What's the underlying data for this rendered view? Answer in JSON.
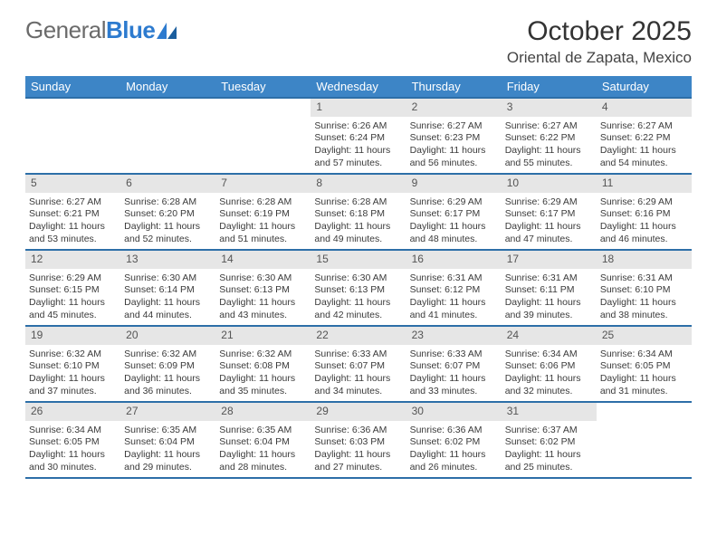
{
  "brand": {
    "gray": "General",
    "blue": "Blue"
  },
  "title": "October 2025",
  "subtitle": "Oriental de Zapata, Mexico",
  "colors": {
    "header_bg": "#3d85c6",
    "header_text": "#ffffff",
    "row_border": "#2d6fa8",
    "daynum_bg": "#e6e6e6",
    "logo_blue": "#2d7bcf",
    "page_bg": "#ffffff",
    "text": "#3a3a3a"
  },
  "fonts": {
    "title_size": 30,
    "subtitle_size": 17,
    "th_size": 13,
    "cell_size": 10.5
  },
  "dayHeaders": [
    "Sunday",
    "Monday",
    "Tuesday",
    "Wednesday",
    "Thursday",
    "Friday",
    "Saturday"
  ],
  "weeks": [
    [
      {
        "num": "",
        "lines": [
          "",
          "",
          "",
          ""
        ]
      },
      {
        "num": "",
        "lines": [
          "",
          "",
          "",
          ""
        ]
      },
      {
        "num": "",
        "lines": [
          "",
          "",
          "",
          ""
        ]
      },
      {
        "num": "1",
        "lines": [
          "Sunrise: 6:26 AM",
          "Sunset: 6:24 PM",
          "Daylight: 11 hours",
          "and 57 minutes."
        ]
      },
      {
        "num": "2",
        "lines": [
          "Sunrise: 6:27 AM",
          "Sunset: 6:23 PM",
          "Daylight: 11 hours",
          "and 56 minutes."
        ]
      },
      {
        "num": "3",
        "lines": [
          "Sunrise: 6:27 AM",
          "Sunset: 6:22 PM",
          "Daylight: 11 hours",
          "and 55 minutes."
        ]
      },
      {
        "num": "4",
        "lines": [
          "Sunrise: 6:27 AM",
          "Sunset: 6:22 PM",
          "Daylight: 11 hours",
          "and 54 minutes."
        ]
      }
    ],
    [
      {
        "num": "5",
        "lines": [
          "Sunrise: 6:27 AM",
          "Sunset: 6:21 PM",
          "Daylight: 11 hours",
          "and 53 minutes."
        ]
      },
      {
        "num": "6",
        "lines": [
          "Sunrise: 6:28 AM",
          "Sunset: 6:20 PM",
          "Daylight: 11 hours",
          "and 52 minutes."
        ]
      },
      {
        "num": "7",
        "lines": [
          "Sunrise: 6:28 AM",
          "Sunset: 6:19 PM",
          "Daylight: 11 hours",
          "and 51 minutes."
        ]
      },
      {
        "num": "8",
        "lines": [
          "Sunrise: 6:28 AM",
          "Sunset: 6:18 PM",
          "Daylight: 11 hours",
          "and 49 minutes."
        ]
      },
      {
        "num": "9",
        "lines": [
          "Sunrise: 6:29 AM",
          "Sunset: 6:17 PM",
          "Daylight: 11 hours",
          "and 48 minutes."
        ]
      },
      {
        "num": "10",
        "lines": [
          "Sunrise: 6:29 AM",
          "Sunset: 6:17 PM",
          "Daylight: 11 hours",
          "and 47 minutes."
        ]
      },
      {
        "num": "11",
        "lines": [
          "Sunrise: 6:29 AM",
          "Sunset: 6:16 PM",
          "Daylight: 11 hours",
          "and 46 minutes."
        ]
      }
    ],
    [
      {
        "num": "12",
        "lines": [
          "Sunrise: 6:29 AM",
          "Sunset: 6:15 PM",
          "Daylight: 11 hours",
          "and 45 minutes."
        ]
      },
      {
        "num": "13",
        "lines": [
          "Sunrise: 6:30 AM",
          "Sunset: 6:14 PM",
          "Daylight: 11 hours",
          "and 44 minutes."
        ]
      },
      {
        "num": "14",
        "lines": [
          "Sunrise: 6:30 AM",
          "Sunset: 6:13 PM",
          "Daylight: 11 hours",
          "and 43 minutes."
        ]
      },
      {
        "num": "15",
        "lines": [
          "Sunrise: 6:30 AM",
          "Sunset: 6:13 PM",
          "Daylight: 11 hours",
          "and 42 minutes."
        ]
      },
      {
        "num": "16",
        "lines": [
          "Sunrise: 6:31 AM",
          "Sunset: 6:12 PM",
          "Daylight: 11 hours",
          "and 41 minutes."
        ]
      },
      {
        "num": "17",
        "lines": [
          "Sunrise: 6:31 AM",
          "Sunset: 6:11 PM",
          "Daylight: 11 hours",
          "and 39 minutes."
        ]
      },
      {
        "num": "18",
        "lines": [
          "Sunrise: 6:31 AM",
          "Sunset: 6:10 PM",
          "Daylight: 11 hours",
          "and 38 minutes."
        ]
      }
    ],
    [
      {
        "num": "19",
        "lines": [
          "Sunrise: 6:32 AM",
          "Sunset: 6:10 PM",
          "Daylight: 11 hours",
          "and 37 minutes."
        ]
      },
      {
        "num": "20",
        "lines": [
          "Sunrise: 6:32 AM",
          "Sunset: 6:09 PM",
          "Daylight: 11 hours",
          "and 36 minutes."
        ]
      },
      {
        "num": "21",
        "lines": [
          "Sunrise: 6:32 AM",
          "Sunset: 6:08 PM",
          "Daylight: 11 hours",
          "and 35 minutes."
        ]
      },
      {
        "num": "22",
        "lines": [
          "Sunrise: 6:33 AM",
          "Sunset: 6:07 PM",
          "Daylight: 11 hours",
          "and 34 minutes."
        ]
      },
      {
        "num": "23",
        "lines": [
          "Sunrise: 6:33 AM",
          "Sunset: 6:07 PM",
          "Daylight: 11 hours",
          "and 33 minutes."
        ]
      },
      {
        "num": "24",
        "lines": [
          "Sunrise: 6:34 AM",
          "Sunset: 6:06 PM",
          "Daylight: 11 hours",
          "and 32 minutes."
        ]
      },
      {
        "num": "25",
        "lines": [
          "Sunrise: 6:34 AM",
          "Sunset: 6:05 PM",
          "Daylight: 11 hours",
          "and 31 minutes."
        ]
      }
    ],
    [
      {
        "num": "26",
        "lines": [
          "Sunrise: 6:34 AM",
          "Sunset: 6:05 PM",
          "Daylight: 11 hours",
          "and 30 minutes."
        ]
      },
      {
        "num": "27",
        "lines": [
          "Sunrise: 6:35 AM",
          "Sunset: 6:04 PM",
          "Daylight: 11 hours",
          "and 29 minutes."
        ]
      },
      {
        "num": "28",
        "lines": [
          "Sunrise: 6:35 AM",
          "Sunset: 6:04 PM",
          "Daylight: 11 hours",
          "and 28 minutes."
        ]
      },
      {
        "num": "29",
        "lines": [
          "Sunrise: 6:36 AM",
          "Sunset: 6:03 PM",
          "Daylight: 11 hours",
          "and 27 minutes."
        ]
      },
      {
        "num": "30",
        "lines": [
          "Sunrise: 6:36 AM",
          "Sunset: 6:02 PM",
          "Daylight: 11 hours",
          "and 26 minutes."
        ]
      },
      {
        "num": "31",
        "lines": [
          "Sunrise: 6:37 AM",
          "Sunset: 6:02 PM",
          "Daylight: 11 hours",
          "and 25 minutes."
        ]
      },
      {
        "num": "",
        "lines": [
          "",
          "",
          "",
          ""
        ]
      }
    ]
  ]
}
